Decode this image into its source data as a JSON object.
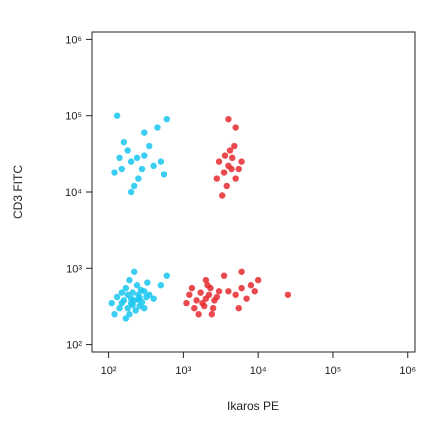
{
  "chart_data": {
    "type": "scatter",
    "x_label": "Ikaros PE",
    "y_label": "CD3 FITC",
    "xscale": "log",
    "yscale": "log",
    "xlim": [
      60,
      1250000
    ],
    "ylim": [
      80,
      1250000
    ],
    "xticks": [
      {
        "value": 100,
        "label": "10²"
      },
      {
        "value": 1000,
        "label": "10³"
      },
      {
        "value": 10000,
        "label": "10⁴"
      },
      {
        "value": 100000,
        "label": "10⁵"
      },
      {
        "value": 1000000,
        "label": "10⁶"
      }
    ],
    "yticks": [
      {
        "value": 100,
        "label": "10²"
      },
      {
        "value": 1000,
        "label": "10³"
      },
      {
        "value": 10000,
        "label": "10⁴"
      },
      {
        "value": 100000,
        "label": "10⁵"
      },
      {
        "value": 1000000,
        "label": "10⁶"
      }
    ],
    "series": [
      {
        "color": "#18c6f0",
        "x": [
          200,
          150,
          250,
          180,
          300,
          220,
          130,
          170,
          260,
          320,
          190,
          240,
          160,
          210,
          280,
          140,
          350,
          230,
          190,
          270,
          110,
          400,
          150,
          210,
          250,
          180,
          300,
          120,
          500,
          600,
          220,
          170,
          330,
          260,
          200,
          200,
          150,
          300,
          120,
          250,
          180,
          400,
          350,
          220,
          140,
          500,
          280,
          160,
          450,
          600,
          300,
          130,
          200,
          550,
          240
        ],
        "y": [
          400,
          350,
          450,
          300,
          500,
          380,
          420,
          550,
          320,
          420,
          250,
          600,
          380,
          480,
          360,
          300,
          450,
          280,
          700,
          520,
          350,
          400,
          480,
          330,
          390,
          450,
          300,
          250,
          600,
          800,
          900,
          220,
          650,
          410,
          350,
          25000,
          20000,
          30000,
          18000,
          15000,
          35000,
          22000,
          40000,
          12000,
          28000,
          25000,
          20000,
          45000,
          70000,
          90000,
          60000,
          100000,
          10000,
          17000,
          28000
        ]
      },
      {
        "color": "#e62a2f",
        "x": [
          4000,
          3500,
          4500,
          3000,
          5000,
          4200,
          3800,
          5500,
          2800,
          4800,
          3600,
          4000,
          5000,
          3300,
          6000,
          4400,
          2000,
          1800,
          2200,
          1500,
          2500,
          1700,
          2300,
          1400,
          2800,
          1600,
          2100,
          1900,
          3000,
          1200,
          2600,
          4000,
          5000,
          6000,
          7000,
          8000,
          9000,
          3500,
          6000,
          2000,
          1100,
          5500,
          1300,
          2400,
          10000,
          25000
        ],
        "y": [
          22000,
          18000,
          28000,
          25000,
          15000,
          35000,
          12000,
          20000,
          15000,
          40000,
          30000,
          90000,
          70000,
          9000,
          25000,
          20000,
          400,
          350,
          450,
          380,
          300,
          480,
          550,
          300,
          420,
          250,
          600,
          320,
          500,
          450,
          380,
          500,
          450,
          550,
          400,
          600,
          500,
          800,
          900,
          700,
          350,
          300,
          550,
          250,
          700,
          450
        ]
      }
    ]
  }
}
